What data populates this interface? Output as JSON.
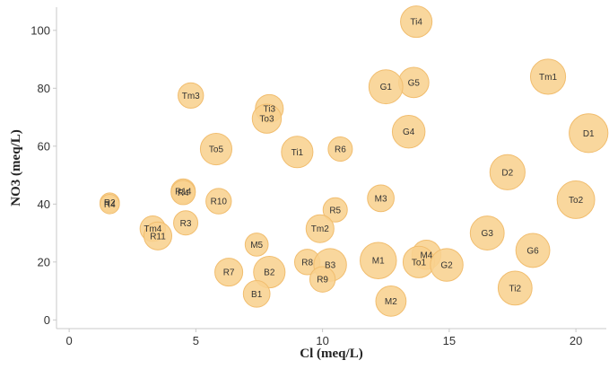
{
  "chart_data": {
    "type": "scatter",
    "variant": "bubble",
    "xlabel": "Cl (meq/L)",
    "ylabel": "NO3 (meq/L)",
    "xlim": [
      -0.5,
      21.2
    ],
    "ylim": [
      -3,
      108
    ],
    "x_ticks": [
      0,
      5,
      10,
      15,
      20
    ],
    "y_ticks": [
      0,
      20,
      40,
      60,
      80,
      100
    ],
    "grid": false,
    "legend": "none",
    "colors": {
      "bubble_fill": "#f8d18f",
      "bubble_stroke": "#f1bd6e",
      "axis": "#c8c8c8",
      "text": "#333333"
    },
    "points": [
      {
        "label": "Ti4",
        "x": 13.7,
        "y": 103,
        "size": 1.3
      },
      {
        "label": "Tm1",
        "x": 18.9,
        "y": 84,
        "size": 1.45
      },
      {
        "label": "G5",
        "x": 13.6,
        "y": 82,
        "size": 1.25
      },
      {
        "label": "G1",
        "x": 12.5,
        "y": 80.5,
        "size": 1.4
      },
      {
        "label": "Tm3",
        "x": 4.8,
        "y": 77.5,
        "size": 1.05
      },
      {
        "label": "Ti3",
        "x": 7.9,
        "y": 73,
        "size": 1.15
      },
      {
        "label": "To3",
        "x": 7.8,
        "y": 69.5,
        "size": 1.2
      },
      {
        "label": "G4",
        "x": 13.4,
        "y": 65,
        "size": 1.35
      },
      {
        "label": "D1",
        "x": 20.5,
        "y": 64.5,
        "size": 1.6
      },
      {
        "label": "R6",
        "x": 10.7,
        "y": 59,
        "size": 1.0
      },
      {
        "label": "To5",
        "x": 5.8,
        "y": 59,
        "size": 1.3
      },
      {
        "label": "Ti1",
        "x": 9.0,
        "y": 58,
        "size": 1.3
      },
      {
        "label": "D2",
        "x": 17.3,
        "y": 51,
        "size": 1.45
      },
      {
        "label": "R14",
        "x": 4.5,
        "y": 44.5,
        "size": 1.0
      },
      {
        "label": "R4",
        "x": 4.5,
        "y": 44,
        "size": 1.0
      },
      {
        "label": "M3",
        "x": 12.3,
        "y": 42,
        "size": 1.1
      },
      {
        "label": "To2",
        "x": 20.0,
        "y": 41.5,
        "size": 1.55
      },
      {
        "label": "R10",
        "x": 5.9,
        "y": 41,
        "size": 1.05
      },
      {
        "label": "R2",
        "x": 1.6,
        "y": 40.5,
        "size": 0.8
      },
      {
        "label": "R4",
        "x": 1.6,
        "y": 40,
        "size": 0.8
      },
      {
        "label": "R5",
        "x": 10.5,
        "y": 38,
        "size": 1.0
      },
      {
        "label": "R3",
        "x": 4.6,
        "y": 33.5,
        "size": 1.0
      },
      {
        "label": "Tm2",
        "x": 9.9,
        "y": 31.5,
        "size": 1.15
      },
      {
        "label": "Tm4",
        "x": 3.3,
        "y": 31.5,
        "size": 1.05
      },
      {
        "label": "G3",
        "x": 16.5,
        "y": 30,
        "size": 1.4
      },
      {
        "label": "R11",
        "x": 3.5,
        "y": 29,
        "size": 1.15
      },
      {
        "label": "M5",
        "x": 7.4,
        "y": 26,
        "size": 0.95
      },
      {
        "label": "G6",
        "x": 18.3,
        "y": 24,
        "size": 1.4
      },
      {
        "label": "M4",
        "x": 14.1,
        "y": 22.5,
        "size": 1.2
      },
      {
        "label": "M1",
        "x": 12.2,
        "y": 20.5,
        "size": 1.5
      },
      {
        "label": "R8",
        "x": 9.4,
        "y": 20,
        "size": 1.05
      },
      {
        "label": "To1",
        "x": 13.8,
        "y": 20,
        "size": 1.3
      },
      {
        "label": "B3",
        "x": 10.3,
        "y": 19,
        "size": 1.35
      },
      {
        "label": "G2",
        "x": 14.9,
        "y": 19,
        "size": 1.35
      },
      {
        "label": "B2",
        "x": 7.9,
        "y": 16.5,
        "size": 1.3
      },
      {
        "label": "R7",
        "x": 6.3,
        "y": 16.5,
        "size": 1.15
      },
      {
        "label": "R9",
        "x": 10.0,
        "y": 14,
        "size": 1.05
      },
      {
        "label": "Ti2",
        "x": 17.6,
        "y": 11,
        "size": 1.4
      },
      {
        "label": "B1",
        "x": 7.4,
        "y": 9,
        "size": 1.1
      },
      {
        "label": "M2",
        "x": 12.7,
        "y": 6.5,
        "size": 1.25
      }
    ]
  }
}
